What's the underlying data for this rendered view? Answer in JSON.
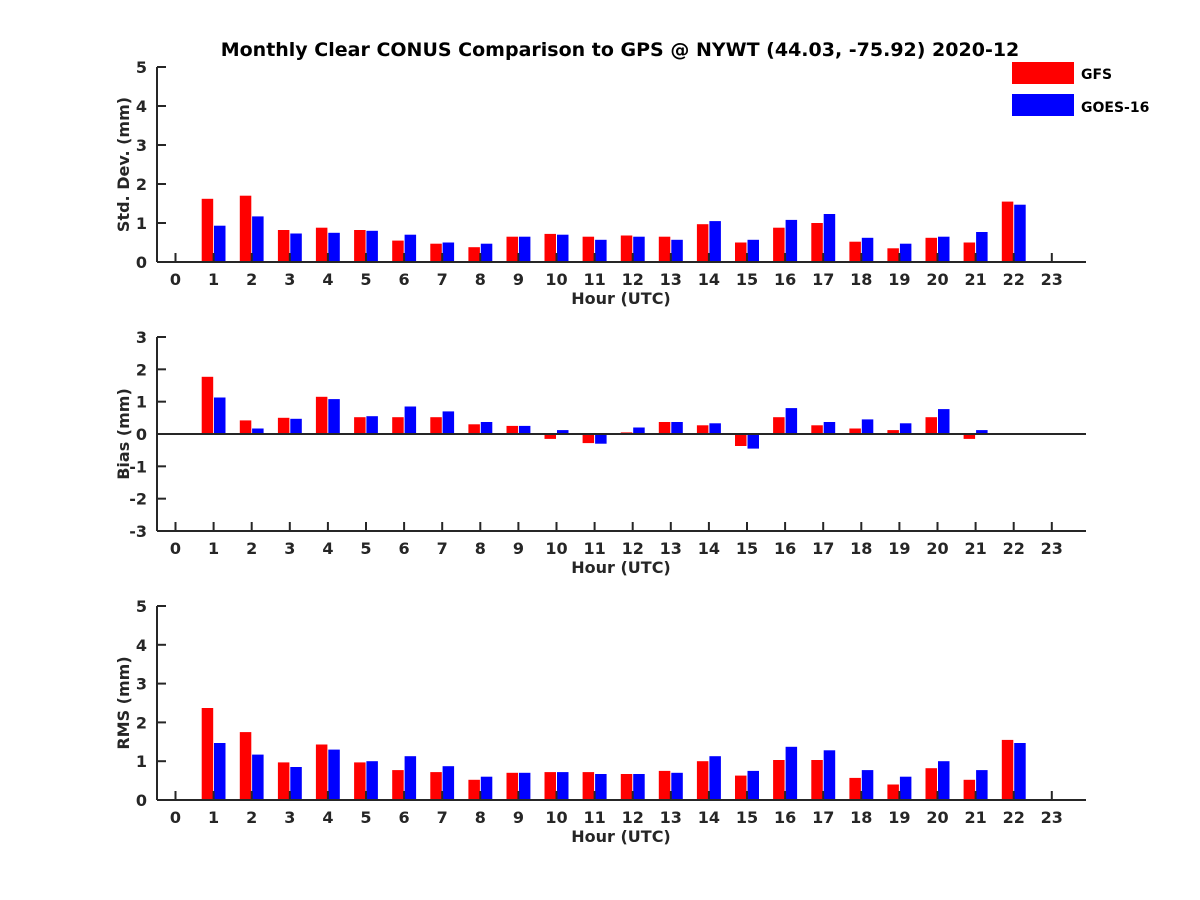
{
  "title": "Monthly Clear CONUS Comparison to GPS @ NYWT (44.03, -75.92) 2020-12",
  "legend": [
    {
      "label": "GFS",
      "color": "#ff0000"
    },
    {
      "label": "GOES-16",
      "color": "#0000ff"
    }
  ],
  "chart_data": [
    {
      "type": "bar",
      "xlabel": "Hour (UTC)",
      "ylabel": "Std. Dev. (mm)",
      "ylim": [
        0,
        5
      ],
      "yticks": [
        "0",
        "1",
        "2",
        "3",
        "4",
        "5"
      ],
      "categories": [
        "0",
        "1",
        "2",
        "3",
        "4",
        "5",
        "6",
        "7",
        "8",
        "9",
        "10",
        "11",
        "12",
        "13",
        "14",
        "15",
        "16",
        "17",
        "18",
        "19",
        "20",
        "21",
        "22",
        "23"
      ],
      "legend_position": "top-right",
      "series": [
        {
          "name": "GFS",
          "color": "#ff0000",
          "values": [
            null,
            1.62,
            1.7,
            0.82,
            0.88,
            0.82,
            0.55,
            0.47,
            0.38,
            0.65,
            0.72,
            0.65,
            0.68,
            0.65,
            0.97,
            0.5,
            0.88,
            1.0,
            0.52,
            0.35,
            0.62,
            0.5,
            1.55,
            null
          ]
        },
        {
          "name": "GOES-16",
          "color": "#0000ff",
          "values": [
            null,
            0.93,
            1.17,
            0.73,
            0.75,
            0.8,
            0.7,
            0.5,
            0.47,
            0.65,
            0.7,
            0.57,
            0.65,
            0.57,
            1.05,
            0.57,
            1.08,
            1.23,
            0.62,
            0.47,
            0.65,
            0.77,
            1.47,
            null
          ]
        }
      ]
    },
    {
      "type": "bar",
      "xlabel": "Hour (UTC)",
      "ylabel": "Bias (mm)",
      "ylim": [
        -3,
        3
      ],
      "yticks": [
        "-3",
        "-2",
        "-1",
        "0",
        "1",
        "2",
        "3"
      ],
      "categories": [
        "0",
        "1",
        "2",
        "3",
        "4",
        "5",
        "6",
        "7",
        "8",
        "9",
        "10",
        "11",
        "12",
        "13",
        "14",
        "15",
        "16",
        "17",
        "18",
        "19",
        "20",
        "21",
        "22",
        "23"
      ],
      "series": [
        {
          "name": "GFS",
          "color": "#ff0000",
          "values": [
            null,
            1.77,
            0.42,
            0.5,
            1.15,
            0.52,
            0.52,
            0.52,
            0.3,
            0.25,
            -0.15,
            -0.28,
            0.05,
            0.37,
            0.27,
            -0.37,
            0.52,
            0.27,
            0.17,
            0.12,
            0.52,
            -0.15,
            0.02,
            null
          ]
        },
        {
          "name": "GOES-16",
          "color": "#0000ff",
          "values": [
            null,
            1.13,
            0.17,
            0.47,
            1.08,
            0.55,
            0.85,
            0.7,
            0.37,
            0.25,
            0.12,
            -0.3,
            0.2,
            0.37,
            0.33,
            -0.45,
            0.8,
            0.37,
            0.45,
            0.33,
            0.77,
            0.12,
            -0.03,
            null
          ]
        }
      ]
    },
    {
      "type": "bar",
      "xlabel": "Hour (UTC)",
      "ylabel": "RMS (mm)",
      "ylim": [
        0,
        5
      ],
      "yticks": [
        "0",
        "1",
        "2",
        "3",
        "4",
        "5"
      ],
      "categories": [
        "0",
        "1",
        "2",
        "3",
        "4",
        "5",
        "6",
        "7",
        "8",
        "9",
        "10",
        "11",
        "12",
        "13",
        "14",
        "15",
        "16",
        "17",
        "18",
        "19",
        "20",
        "21",
        "22",
        "23"
      ],
      "series": [
        {
          "name": "GFS",
          "color": "#ff0000",
          "values": [
            null,
            2.37,
            1.75,
            0.97,
            1.43,
            0.97,
            0.77,
            0.72,
            0.52,
            0.7,
            0.72,
            0.72,
            0.67,
            0.75,
            1.0,
            0.63,
            1.03,
            1.03,
            0.57,
            0.4,
            0.82,
            0.52,
            1.55,
            null
          ]
        },
        {
          "name": "GOES-16",
          "color": "#0000ff",
          "values": [
            null,
            1.47,
            1.17,
            0.85,
            1.3,
            1.0,
            1.13,
            0.87,
            0.6,
            0.7,
            0.72,
            0.67,
            0.67,
            0.7,
            1.13,
            0.75,
            1.37,
            1.28,
            0.77,
            0.6,
            1.0,
            0.77,
            1.47,
            null
          ]
        }
      ]
    }
  ]
}
